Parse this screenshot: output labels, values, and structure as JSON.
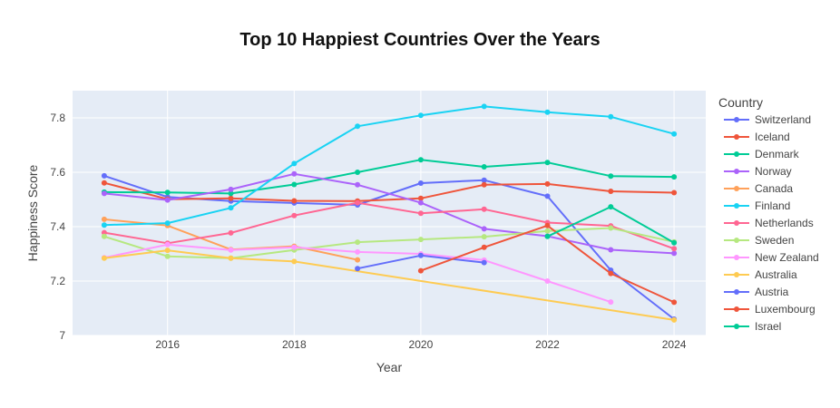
{
  "chart_data": {
    "type": "line",
    "title": "Top 10 Happiest Countries Over the Years",
    "xlabel": "Year",
    "ylabel": "Happiness Score",
    "xlim": [
      2014.5,
      2024.5
    ],
    "ylim": [
      7.0,
      7.9
    ],
    "x_ticks": [
      2016,
      2018,
      2020,
      2022,
      2024
    ],
    "y_ticks": [
      7.0,
      7.2,
      7.4,
      7.6,
      7.8
    ],
    "x_tick_labels": [
      "2016",
      "2018",
      "2020",
      "2022",
      "2024"
    ],
    "y_tick_labels": [
      "7",
      "7.2",
      "7.4",
      "7.6",
      "7.8"
    ],
    "grid": true,
    "legend_title": "Country",
    "legend_position": "right",
    "series": [
      {
        "name": "Switzerland",
        "color": "#636efa",
        "x": [
          2015,
          2016,
          2017,
          2018,
          2019,
          2020,
          2021,
          2022,
          2023,
          2024
        ],
        "y": [
          7.587,
          7.509,
          7.494,
          7.487,
          7.48,
          7.56,
          7.571,
          7.512,
          7.24,
          7.06
        ]
      },
      {
        "name": "Iceland",
        "color": "#ef553b",
        "x": [
          2015,
          2016,
          2017,
          2018,
          2019,
          2020,
          2021,
          2022,
          2023,
          2024
        ],
        "y": [
          7.561,
          7.501,
          7.504,
          7.495,
          7.494,
          7.504,
          7.554,
          7.557,
          7.53,
          7.525
        ]
      },
      {
        "name": "Denmark",
        "color": "#00cc96",
        "x": [
          2015,
          2016,
          2017,
          2018,
          2019,
          2020,
          2021,
          2022,
          2023,
          2024
        ],
        "y": [
          7.527,
          7.526,
          7.522,
          7.555,
          7.6,
          7.646,
          7.62,
          7.636,
          7.586,
          7.583
        ]
      },
      {
        "name": "Norway",
        "color": "#ab63fa",
        "x": [
          2015,
          2016,
          2017,
          2018,
          2019,
          2020,
          2021,
          2022,
          2023,
          2024
        ],
        "y": [
          7.522,
          7.498,
          7.537,
          7.594,
          7.554,
          7.488,
          7.392,
          7.365,
          7.315,
          7.302
        ]
      },
      {
        "name": "Canada",
        "color": "#ffa15a",
        "x": [
          2015,
          2016,
          2017,
          2018,
          2019
        ],
        "y": [
          7.427,
          7.404,
          7.316,
          7.328,
          7.278
        ]
      },
      {
        "name": "Finland",
        "color": "#19d3f3",
        "x": [
          2015,
          2016,
          2017,
          2018,
          2019,
          2020,
          2021,
          2022,
          2023,
          2024
        ],
        "y": [
          7.406,
          7.413,
          7.469,
          7.632,
          7.769,
          7.809,
          7.842,
          7.821,
          7.804,
          7.741
        ]
      },
      {
        "name": "Netherlands",
        "color": "#ff6692",
        "x": [
          2015,
          2016,
          2017,
          2018,
          2019,
          2020,
          2021,
          2022,
          2023,
          2024
        ],
        "y": [
          7.378,
          7.339,
          7.377,
          7.441,
          7.488,
          7.449,
          7.464,
          7.415,
          7.403,
          7.319
        ]
      },
      {
        "name": "Sweden",
        "color": "#b6e880",
        "x": [
          2015,
          2016,
          2017,
          2018,
          2019,
          2020,
          2021,
          2022,
          2023,
          2024
        ],
        "y": [
          7.364,
          7.291,
          7.284,
          7.314,
          7.343,
          7.353,
          7.363,
          7.384,
          7.395,
          7.344
        ]
      },
      {
        "name": "New Zealand",
        "color": "#ff97ff",
        "x": [
          2015,
          2016,
          2017,
          2018,
          2019,
          2020,
          2021,
          2022,
          2023
        ],
        "y": [
          7.286,
          7.334,
          7.314,
          7.324,
          7.307,
          7.3,
          7.277,
          7.2,
          7.123
        ]
      },
      {
        "name": "Australia",
        "color": "#fecb52",
        "x": [
          2015,
          2016,
          2017,
          2018,
          2024
        ],
        "y": [
          7.284,
          7.313,
          7.284,
          7.272,
          7.057
        ]
      },
      {
        "name": "Austria",
        "color": "#636efa",
        "x": [
          2019,
          2020,
          2021
        ],
        "y": [
          7.246,
          7.294,
          7.268
        ]
      },
      {
        "name": "Luxembourg",
        "color": "#ef553b",
        "x": [
          2020,
          2021,
          2022,
          2023,
          2024
        ],
        "y": [
          7.238,
          7.324,
          7.404,
          7.228,
          7.122
        ]
      },
      {
        "name": "Israel",
        "color": "#00cc96",
        "x": [
          2022,
          2023,
          2024
        ],
        "y": [
          7.364,
          7.473,
          7.341
        ]
      }
    ]
  }
}
